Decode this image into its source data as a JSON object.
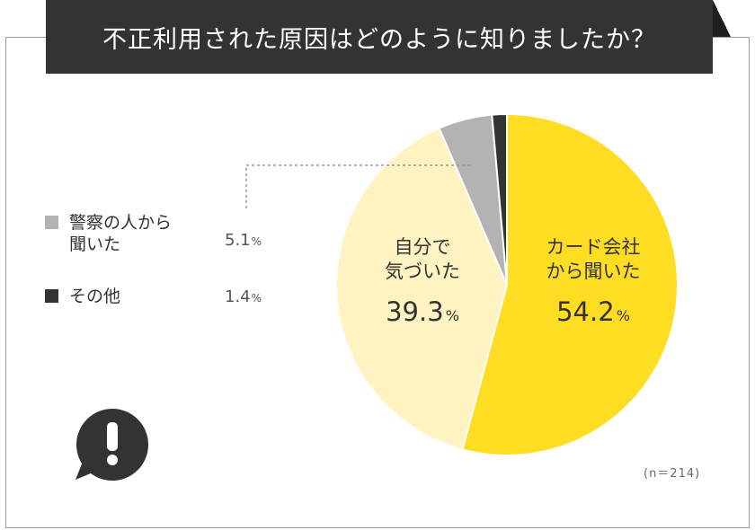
{
  "title": "不正利用された原因はどのように知りましたか？",
  "note": "(n＝214)",
  "percent_sign": "%",
  "icon": "exclamation-speech-bubble-icon",
  "colors": {
    "card_company": "#FFDD22",
    "self": "#FFF3C2",
    "police": "#B3B3B3",
    "other": "#333333",
    "title_bg": "#333333"
  },
  "chart_data": {
    "type": "pie",
    "title": "不正利用された原因はどのように知りましたか？",
    "n": 214,
    "unit": "%",
    "slices": [
      {
        "key": "card_company",
        "label": "カード会社\nから聞いた",
        "value": 54.2,
        "value_text": "54.2"
      },
      {
        "key": "self",
        "label": "自分で\n気づいた",
        "value": 39.3,
        "value_text": "39.3"
      },
      {
        "key": "police",
        "label": "警察の人から\n聞いた",
        "value": 5.1,
        "value_text": "5.1"
      },
      {
        "key": "other",
        "label": "その他",
        "value": 1.4,
        "value_text": "1.4"
      }
    ],
    "legend": [
      {
        "key": "police",
        "label": "警察の人から\n聞いた",
        "value_text": "5.1"
      },
      {
        "key": "other",
        "label": "その他",
        "value_text": "1.4"
      }
    ]
  }
}
